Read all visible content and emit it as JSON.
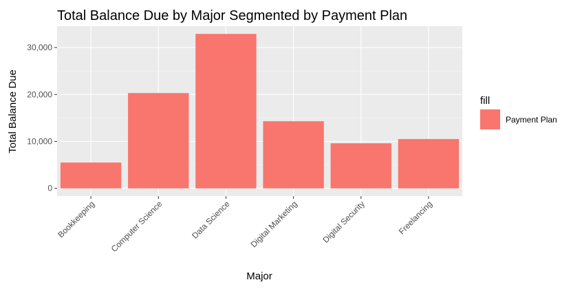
{
  "chart_data": {
    "type": "bar",
    "title": "Total Balance Due by Major Segmented by Payment Plan",
    "xlabel": "Major",
    "ylabel": "Total Balance Due",
    "categories": [
      "Bookkeeping",
      "Computer Science",
      "Data Science",
      "Digital Marketing",
      "Digital Security",
      "Freelancing"
    ],
    "series": [
      {
        "name": "Payment Plan",
        "values": [
          5500,
          20300,
          32900,
          14300,
          9600,
          10500
        ]
      }
    ],
    "ylim": [
      -1650,
      34550
    ],
    "yticks": [
      0,
      10000,
      20000,
      30000
    ],
    "ytick_labels": [
      "0",
      "10,000",
      "20,000",
      "30,000"
    ],
    "legend": {
      "title": "fill",
      "position": "right",
      "entries": [
        "Payment Plan"
      ]
    },
    "grid": true,
    "colors": {
      "bar": "#F8766D",
      "panel": "#EBEBEB",
      "grid_major": "#FFFFFF",
      "grid_minor": "#F5F5F5"
    }
  }
}
